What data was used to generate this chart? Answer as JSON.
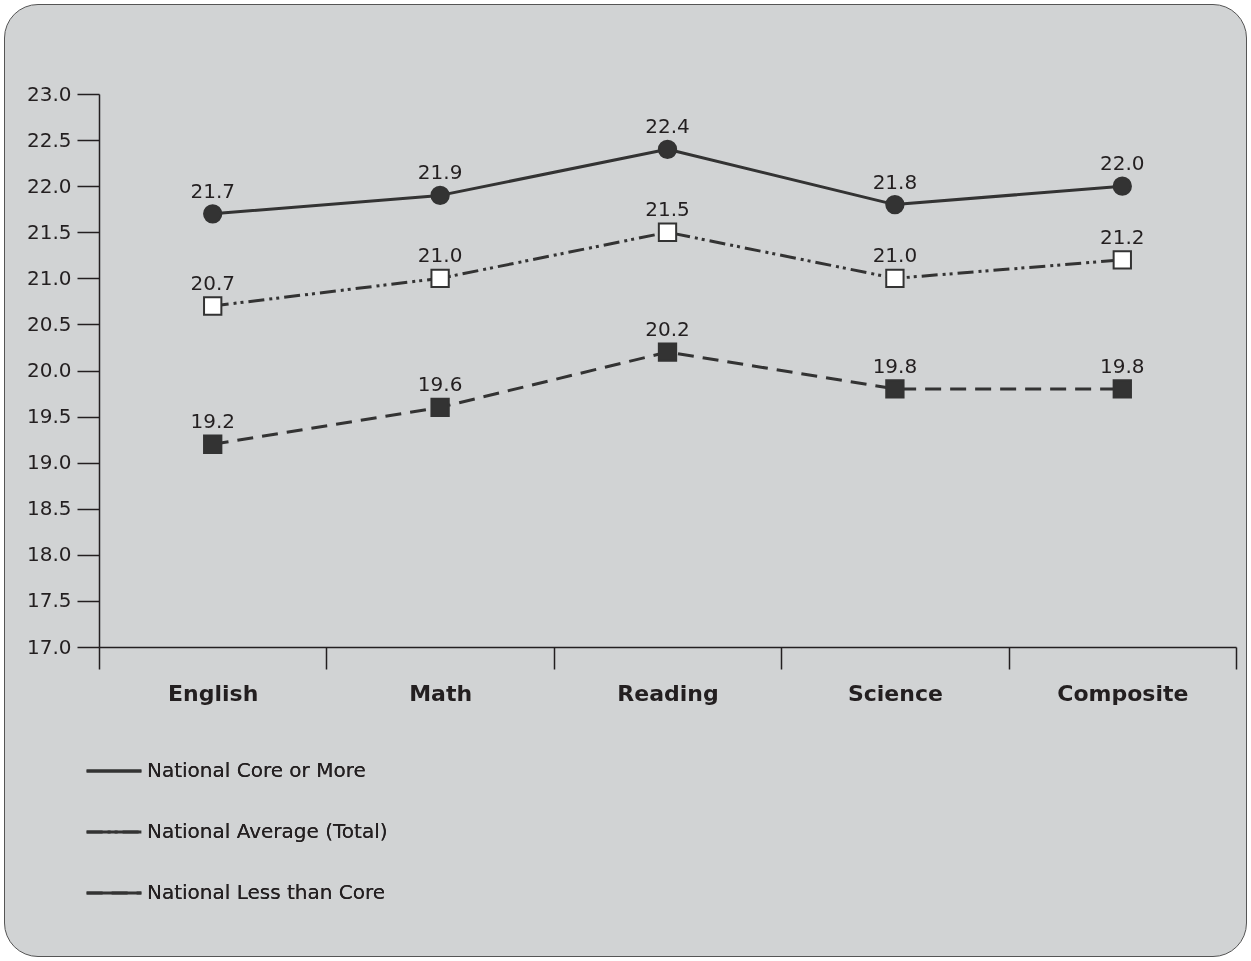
{
  "chart_data": {
    "type": "line",
    "categories": [
      "English",
      "Math",
      "Reading",
      "Science",
      "Composite"
    ],
    "series": [
      {
        "name": "National Core or More",
        "color": "#333333",
        "marker": "circle",
        "line_style": "solid",
        "values": [
          21.7,
          21.9,
          22.4,
          21.8,
          22.0
        ],
        "value_labels": [
          "21.7",
          "21.9",
          "22.4",
          "21.8",
          "22.0"
        ]
      },
      {
        "name": "National Average (Total)",
        "color": "#333333",
        "marker": "square-open",
        "line_style": "dashdotdot",
        "values": [
          20.7,
          21.0,
          21.5,
          21.0,
          21.2
        ],
        "value_labels": [
          "20.7",
          "21.0",
          "21.5",
          "21.0",
          "21.2"
        ]
      },
      {
        "name": "National Less than Core",
        "color": "#333333",
        "marker": "square",
        "line_style": "dashed",
        "values": [
          19.2,
          19.6,
          20.2,
          19.8,
          19.8
        ],
        "value_labels": [
          "19.2",
          "19.6",
          "20.2",
          "19.8",
          "19.8"
        ]
      }
    ],
    "ylim": [
      17,
      23
    ],
    "yticks": [
      {
        "value": 17,
        "label": "17.0"
      },
      {
        "value": 17.5,
        "label": "17.5"
      },
      {
        "value": 18,
        "label": "18.0"
      },
      {
        "value": 18.5,
        "label": "18.5"
      },
      {
        "value": 19,
        "label": "19.0"
      },
      {
        "value": 19.5,
        "label": "19.5"
      },
      {
        "value": 20,
        "label": "20.0"
      },
      {
        "value": 20.5,
        "label": "20.5"
      },
      {
        "value": 21,
        "label": "21.0"
      },
      {
        "value": 21.5,
        "label": "21.5"
      },
      {
        "value": 22,
        "label": "22.0"
      },
      {
        "value": 22.5,
        "label": "22.5"
      },
      {
        "value": 23,
        "label": "23.0"
      }
    ],
    "grid": false,
    "legend": "bottom left"
  }
}
